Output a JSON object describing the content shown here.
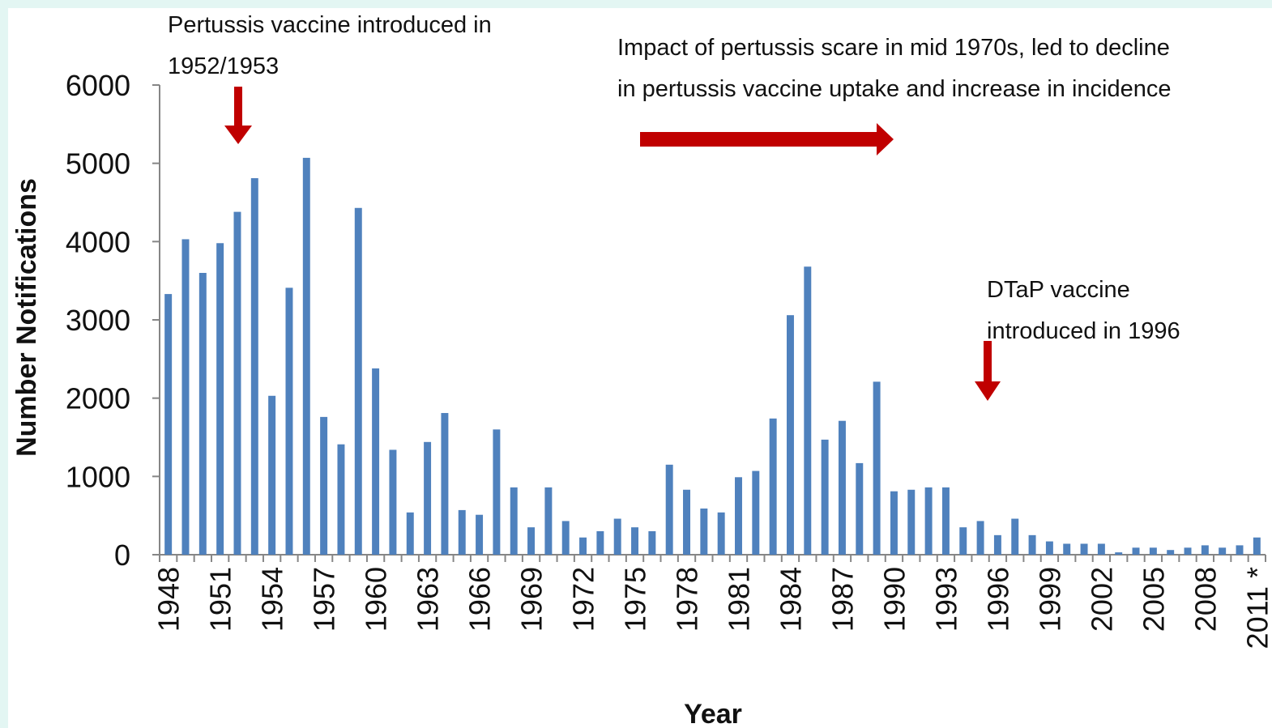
{
  "chart_data": {
    "type": "bar",
    "x_label": "Year",
    "y_label": "Number Notifications",
    "annotations": [
      [
        "Pertussis vaccine introduced in",
        "1952/1953"
      ],
      [
        "Impact of pertussis scare in mid 1970s, led to decline",
        "in  pertussis vaccine uptake and increase in incidence"
      ],
      [
        "DTaP vaccine",
        "introduced in 1996"
      ]
    ],
    "categories": [
      "1948",
      null,
      null,
      "1951",
      null,
      null,
      "1954",
      null,
      null,
      "1957",
      null,
      null,
      "1960",
      null,
      null,
      "1963",
      null,
      null,
      "1966",
      null,
      null,
      "1969",
      null,
      null,
      "1972",
      null,
      null,
      "1975",
      null,
      null,
      "1978",
      null,
      null,
      "1981",
      null,
      null,
      "1984",
      null,
      null,
      "1987",
      null,
      null,
      "1990",
      null,
      null,
      "1993",
      null,
      null,
      "1996",
      null,
      null,
      "1999",
      null,
      null,
      "2002",
      null,
      null,
      "2005",
      null,
      null,
      "2008",
      null,
      null,
      "2011 *"
    ],
    "values": [
      3330,
      4030,
      3600,
      3980,
      4380,
      4810,
      2030,
      3410,
      5070,
      1760,
      1410,
      4430,
      2380,
      1340,
      540,
      1440,
      1810,
      570,
      510,
      1600,
      860,
      350,
      860,
      430,
      220,
      300,
      460,
      350,
      300,
      1150,
      830,
      590,
      540,
      990,
      1070,
      1740,
      3060,
      3680,
      1470,
      1710,
      1170,
      2210,
      810,
      830,
      860,
      860,
      350,
      430,
      250,
      460,
      250,
      170,
      140,
      140,
      140,
      30,
      90,
      90,
      60,
      90,
      120,
      90,
      120,
      220
    ],
    "color": "#4f81bd",
    "ylim": [
      0,
      6000
    ],
    "yticks": [
      0,
      1000,
      2000,
      3000,
      4000,
      5000,
      6000
    ],
    "grid": false
  }
}
